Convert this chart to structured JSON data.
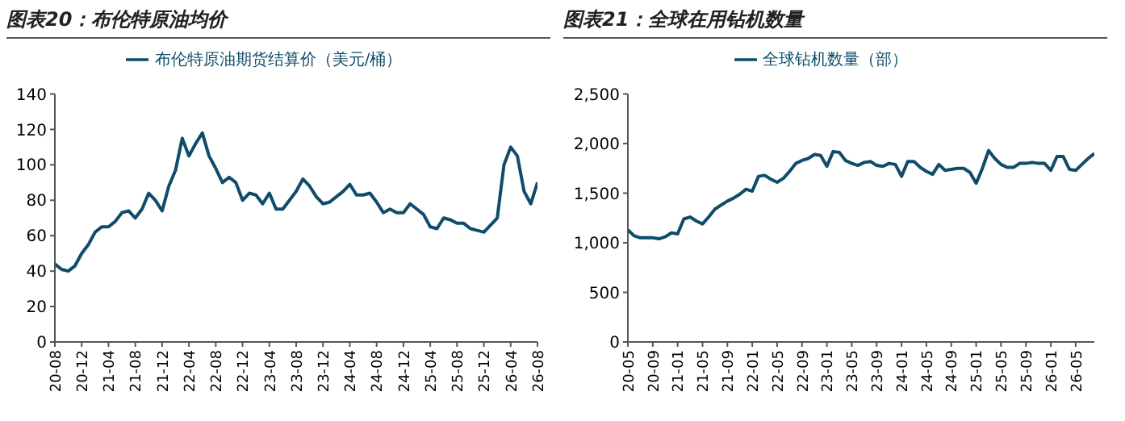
{
  "chart_data": [
    {
      "type": "line",
      "title": "图表20：布伦特原油均价",
      "legend": "top",
      "grid": false,
      "marker": "none",
      "categories": [
        "20-08",
        null,
        null,
        null,
        "20-12",
        null,
        null,
        null,
        "21-04",
        null,
        null,
        null,
        "21-08",
        null,
        null,
        null,
        "21-12",
        null,
        null,
        null,
        "22-04",
        null,
        null,
        null,
        "22-08",
        null,
        null,
        null,
        "22-12",
        null,
        null,
        null,
        "23-04",
        null,
        null,
        null,
        "23-08",
        null,
        null,
        null,
        "23-12",
        null,
        null,
        null,
        "24-04",
        null,
        null,
        null,
        "24-08",
        null,
        null,
        null,
        "24-12",
        null,
        null,
        null,
        "25-04",
        null,
        null,
        null,
        "25-08",
        null,
        null,
        null,
        "25-12",
        null,
        null,
        null,
        "26-04",
        null,
        null,
        null,
        "26-08"
      ],
      "ylim": [
        0,
        140
      ],
      "yticks": [
        0,
        20,
        40,
        60,
        80,
        100,
        120,
        140
      ],
      "series": [
        {
          "name": "布伦特原油期货结算价（美元/桶）",
          "color": "#0f4c6b",
          "values": [
            44,
            41,
            40,
            43,
            50,
            55,
            62,
            65,
            65,
            68,
            73,
            74,
            70,
            75,
            84,
            80,
            74,
            88,
            97,
            115,
            105,
            112,
            118,
            105,
            98,
            90,
            93,
            90,
            80,
            84,
            83,
            78,
            84,
            75,
            75,
            80,
            85,
            92,
            88,
            82,
            78,
            79,
            82,
            85,
            89,
            83,
            83,
            84,
            79,
            73,
            75,
            73,
            73,
            78,
            75,
            72,
            65,
            64,
            70,
            69,
            67,
            67,
            64,
            63,
            62,
            66,
            70,
            100,
            110,
            105,
            85,
            78,
            90
          ]
        }
      ]
    },
    {
      "type": "line",
      "title": "图表21：全球在用钻机数量",
      "legend": "top",
      "grid": false,
      "marker": "none",
      "categories": [
        "20-05",
        null,
        null,
        null,
        "20-09",
        null,
        null,
        null,
        "21-01",
        null,
        null,
        null,
        "21-05",
        null,
        null,
        null,
        "21-09",
        null,
        null,
        null,
        "22-01",
        null,
        null,
        null,
        "22-05",
        null,
        null,
        null,
        "22-09",
        null,
        null,
        null,
        "23-01",
        null,
        null,
        null,
        "23-05",
        null,
        null,
        null,
        "23-09",
        null,
        null,
        null,
        "24-01",
        null,
        null,
        null,
        "24-05",
        null,
        null,
        null,
        "24-09",
        null,
        null,
        null,
        "25-01",
        null,
        null,
        null,
        "25-05",
        null,
        null,
        null,
        "25-09",
        null,
        null,
        null,
        "26-01",
        null,
        null,
        null,
        "26-05",
        null,
        null,
        null
      ],
      "ylim": [
        0,
        2500
      ],
      "yticks": [
        0,
        500,
        {
          "value": 1000,
          "label": "1,000"
        },
        {
          "value": 1500,
          "label": "1,500"
        },
        {
          "value": 2000,
          "label": "2,000"
        },
        {
          "value": 2500,
          "label": "2,500"
        }
      ],
      "series": [
        {
          "name": "全球钻机数量（部）",
          "color": "#0f4c6b",
          "values": [
            1130,
            1070,
            1050,
            1050,
            1050,
            1040,
            1060,
            1100,
            1090,
            1240,
            1260,
            1220,
            1190,
            1260,
            1340,
            1380,
            1420,
            1450,
            1490,
            1540,
            1520,
            1670,
            1680,
            1640,
            1610,
            1650,
            1720,
            1800,
            1830,
            1850,
            1890,
            1880,
            1770,
            1920,
            1910,
            1830,
            1800,
            1780,
            1810,
            1820,
            1780,
            1770,
            1800,
            1790,
            1670,
            1820,
            1820,
            1760,
            1720,
            1690,
            1790,
            1730,
            1740,
            1750,
            1750,
            1710,
            1600,
            1750,
            1930,
            1850,
            1790,
            1760,
            1760,
            1800,
            1800,
            1810,
            1800,
            1800,
            1730,
            1870,
            1870,
            1740,
            1730,
            1790,
            1850,
            1900
          ]
        }
      ]
    }
  ]
}
